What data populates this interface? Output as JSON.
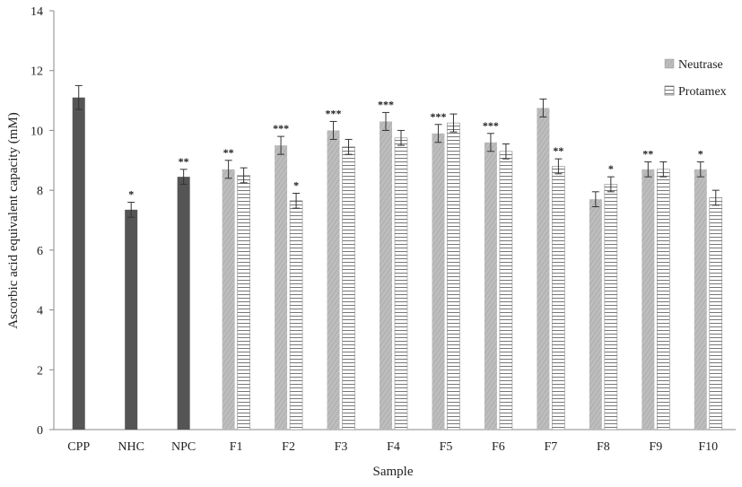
{
  "chart_data": {
    "type": "bar",
    "xlabel": "Sample",
    "ylabel": "Ascorbic acid equivalent capacity (mM)",
    "ylim": [
      0,
      14
    ],
    "yticks": [
      0,
      2,
      4,
      6,
      8,
      10,
      12,
      14
    ],
    "grid": false,
    "legend_position": "top-right",
    "controls": [
      {
        "category": "CPP",
        "value": 11.1,
        "error": 0.4,
        "sig": ""
      },
      {
        "category": "NHC",
        "value": 7.35,
        "error": 0.25,
        "sig": "*"
      },
      {
        "category": "NPC",
        "value": 8.45,
        "error": 0.25,
        "sig": "**"
      }
    ],
    "categories": [
      "F1",
      "F2",
      "F3",
      "F4",
      "F5",
      "F6",
      "F7",
      "F8",
      "F9",
      "F10"
    ],
    "series": [
      {
        "name": "Neutrase",
        "values": [
          8.7,
          9.5,
          10.0,
          10.3,
          9.9,
          9.6,
          10.75,
          7.7,
          8.7,
          8.7
        ],
        "errors": [
          0.3,
          0.3,
          0.3,
          0.3,
          0.3,
          0.3,
          0.3,
          0.25,
          0.25,
          0.25
        ],
        "sig": [
          "**",
          "***",
          "***",
          "***",
          "***",
          "***",
          "",
          "",
          "**",
          "*"
        ]
      },
      {
        "name": "Protamex",
        "values": [
          8.5,
          7.65,
          9.45,
          9.75,
          10.25,
          9.3,
          8.8,
          8.2,
          8.7,
          7.75
        ],
        "errors": [
          0.25,
          0.25,
          0.25,
          0.25,
          0.3,
          0.25,
          0.25,
          0.25,
          0.25,
          0.25
        ],
        "sig": [
          "",
          "*",
          "",
          "",
          "",
          "",
          "**",
          "*",
          "",
          ""
        ]
      }
    ],
    "colors": {
      "control": "#555555",
      "neutrase": "#b3b3b3",
      "protamex_fill": "#ffffff",
      "protamex_lines": "#777777",
      "axis": "#888888"
    }
  }
}
